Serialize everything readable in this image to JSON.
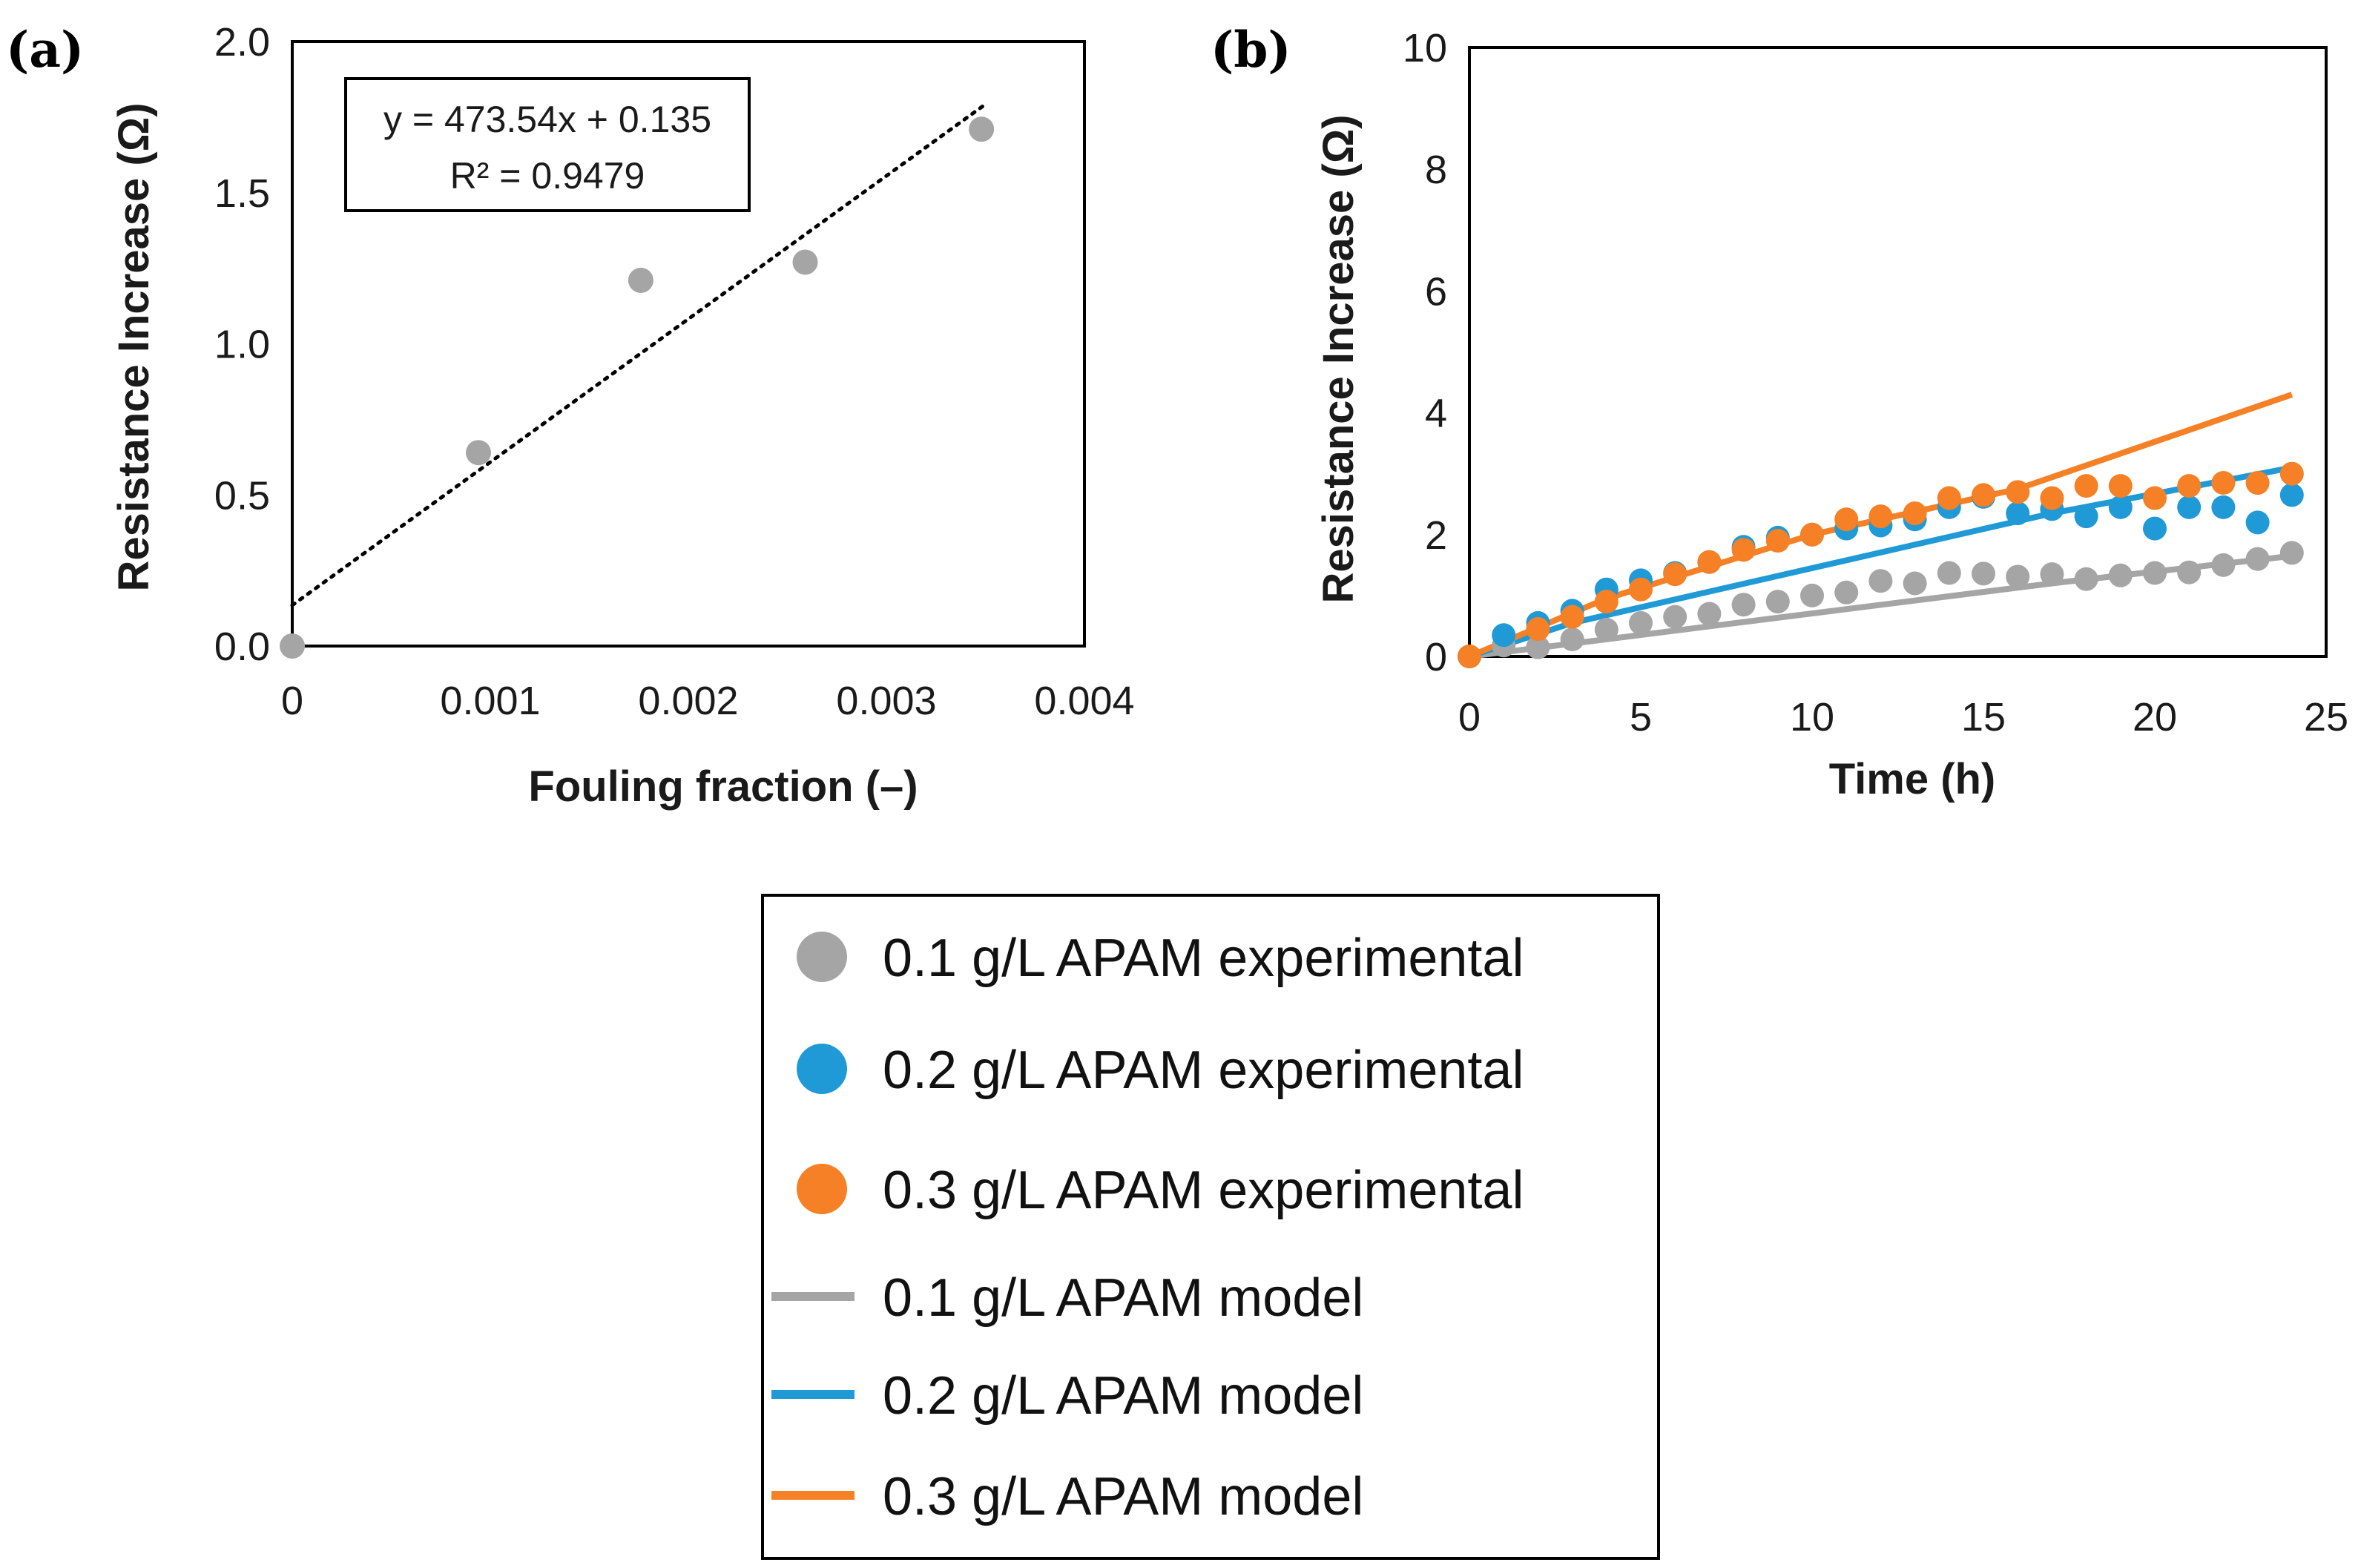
{
  "chart_data": [
    {
      "panel": "(a)",
      "type": "scatter",
      "xlabel": "Fouling fraction (–)",
      "ylabel": "Resistance Increase (Ω)",
      "xlim": [
        0,
        0.004
      ],
      "ylim": [
        0,
        2.0
      ],
      "x_ticks": [
        "0",
        "0.001",
        "0.002",
        "0.003",
        "0.004"
      ],
      "y_ticks": [
        "0.0",
        "0.5",
        "1.0",
        "1.5",
        "2.0"
      ],
      "points": {
        "x": [
          0,
          0.00094,
          0.00176,
          0.00259,
          0.00348
        ],
        "y": [
          0,
          0.64,
          1.21,
          1.27,
          1.71
        ]
      },
      "trendline": {
        "slope": 473.54,
        "intercept": 0.135,
        "x_range": [
          0,
          0.0035
        ]
      },
      "equation_text": "y = 473.54x + 0.135",
      "r2_text": "R² = 0.9479",
      "colors": {
        "points": "#a5a5a5",
        "trendline": "#000000"
      }
    },
    {
      "panel": "(b)",
      "type": "line",
      "xlabel": "Time (h)",
      "ylabel": "Resistance Increase (Ω)",
      "xlim": [
        0,
        25
      ],
      "ylim": [
        0,
        10
      ],
      "x_ticks": [
        "0",
        "5",
        "10",
        "15",
        "20",
        "25"
      ],
      "y_ticks": [
        "0",
        "2",
        "4",
        "6",
        "8",
        "10"
      ],
      "series": [
        {
          "name": "0.1 g/L APAM experimental",
          "kind": "scatter",
          "color": "#a5a5a5",
          "x": [
            0,
            1,
            2,
            3,
            4,
            5,
            6,
            7,
            8,
            9,
            10,
            11,
            12,
            13,
            14,
            15,
            16,
            17,
            18,
            19,
            20,
            21,
            22,
            23,
            24
          ],
          "y": [
            0,
            0.18,
            0.15,
            0.28,
            0.44,
            0.55,
            0.65,
            0.7,
            0.85,
            0.9,
            1.0,
            1.05,
            1.24,
            1.2,
            1.37,
            1.36,
            1.31,
            1.35,
            1.27,
            1.33,
            1.37,
            1.38,
            1.5,
            1.6,
            1.7
          ]
        },
        {
          "name": "0.2 g/L APAM experimental",
          "kind": "scatter",
          "color": "#1f9ad6",
          "x": [
            0,
            1,
            2,
            3,
            4,
            5,
            6,
            7,
            8,
            9,
            10,
            11,
            12,
            13,
            14,
            15,
            16,
            17,
            18,
            19,
            20,
            21,
            22,
            23,
            24
          ],
          "y": [
            0,
            0.35,
            0.55,
            0.75,
            1.1,
            1.25,
            1.37,
            1.55,
            1.8,
            1.95,
            2.0,
            2.1,
            2.15,
            2.25,
            2.45,
            2.62,
            2.35,
            2.42,
            2.3,
            2.45,
            2.1,
            2.45,
            2.45,
            2.2,
            2.65
          ]
        },
        {
          "name": "0.3 g/L APAM experimental",
          "kind": "scatter",
          "color": "#f58025",
          "x": [
            0,
            2,
            3,
            4,
            5,
            6,
            7,
            8,
            9,
            10,
            11,
            12,
            13,
            14,
            15,
            16,
            17,
            18,
            19,
            20,
            21,
            22,
            23,
            24
          ],
          "y": [
            0,
            0.45,
            0.65,
            0.9,
            1.1,
            1.35,
            1.55,
            1.75,
            1.9,
            2.0,
            2.25,
            2.3,
            2.35,
            2.6,
            2.65,
            2.7,
            2.6,
            2.8,
            2.8,
            2.6,
            2.8,
            2.85,
            2.85,
            3.0
          ]
        },
        {
          "name": "0.1 g/L APAM model",
          "kind": "line",
          "color": "#a5a5a5",
          "x": [
            0,
            17,
            24
          ],
          "y": [
            0,
            1.2,
            1.65
          ]
        },
        {
          "name": "0.2 g/L APAM model",
          "kind": "line",
          "color": "#1f9ad6",
          "x": [
            0,
            3,
            17,
            24
          ],
          "y": [
            0,
            0.55,
            2.35,
            3.1
          ]
        },
        {
          "name": "0.3 g/L APAM model",
          "kind": "line",
          "color": "#f58025",
          "x": [
            0,
            4,
            10,
            16,
            24
          ],
          "y": [
            0,
            0.95,
            2.0,
            2.75,
            4.3
          ]
        }
      ]
    }
  ],
  "legend": [
    {
      "label": "0.1 g/L APAM experimental",
      "marker": "circle",
      "color": "#a5a5a5"
    },
    {
      "label": "0.2 g/L APAM experimental",
      "marker": "circle",
      "color": "#1f9ad6"
    },
    {
      "label": "0.3 g/L APAM experimental",
      "marker": "circle",
      "color": "#f58025"
    },
    {
      "label": "0.1 g/L APAM model",
      "marker": "line",
      "color": "#a5a5a5"
    },
    {
      "label": "0.2 g/L APAM model",
      "marker": "line",
      "color": "#1f9ad6"
    },
    {
      "label": "0.3 g/L APAM model",
      "marker": "line",
      "color": "#f58025"
    }
  ]
}
